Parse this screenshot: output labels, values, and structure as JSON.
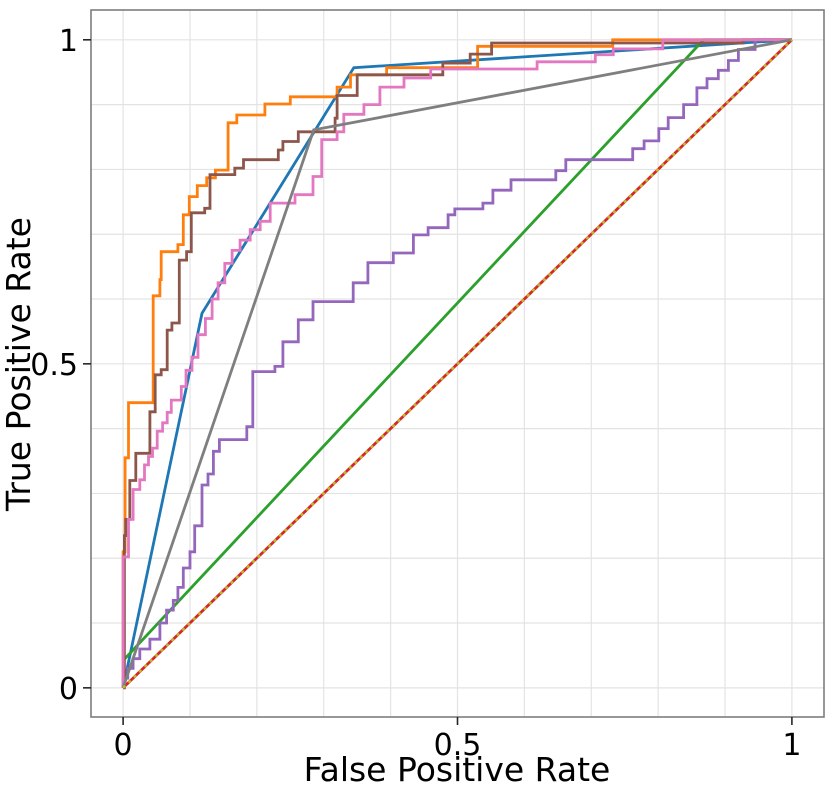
{
  "figure": {
    "background": "#ffffff",
    "grid_color": "#e3e3e3",
    "spine_color": "#7d7d7d",
    "tick_color": "#262626",
    "text_color": "#000000"
  },
  "chart_data": {
    "type": "line",
    "subtype": "roc-curves",
    "title": "",
    "xlabel": "False Positive Rate",
    "ylabel": "True Positive Rate",
    "xlim": [
      -0.048,
      1.048
    ],
    "ylim": [
      -0.045,
      1.046
    ],
    "grid": true,
    "grid_interval": 0.1,
    "legend": "none",
    "xticks": {
      "values": [
        0,
        0.5,
        1
      ],
      "labels": [
        "0",
        "0.5",
        "1"
      ]
    },
    "yticks": {
      "values": [
        0,
        0.5,
        1
      ],
      "labels": [
        "0",
        "0.5",
        "1"
      ]
    },
    "series": [
      {
        "name": "roc-blue",
        "color": "#1f77b4",
        "linestyle": "solid",
        "linewidth": 2.8,
        "points": [
          [
            0,
            0
          ],
          [
            0.118,
            0.578
          ],
          [
            0.345,
            0.957
          ],
          [
            1,
            1
          ]
        ]
      },
      {
        "name": "roc-orange",
        "color": "#ff7f0e",
        "linestyle": "solid",
        "linewidth": 2.8,
        "points": [
          [
            0,
            0
          ],
          [
            0,
            0.21
          ],
          [
            0.003,
            0.21
          ],
          [
            0.003,
            0.355
          ],
          [
            0.008,
            0.355
          ],
          [
            0.008,
            0.44
          ],
          [
            0.045,
            0.44
          ],
          [
            0.045,
            0.605
          ],
          [
            0.055,
            0.605
          ],
          [
            0.055,
            0.63
          ],
          [
            0.057,
            0.63
          ],
          [
            0.057,
            0.673
          ],
          [
            0.082,
            0.673
          ],
          [
            0.082,
            0.684
          ],
          [
            0.09,
            0.684
          ],
          [
            0.09,
            0.73
          ],
          [
            0.099,
            0.73
          ],
          [
            0.099,
            0.758
          ],
          [
            0.111,
            0.758
          ],
          [
            0.111,
            0.775
          ],
          [
            0.125,
            0.775
          ],
          [
            0.125,
            0.787
          ],
          [
            0.138,
            0.787
          ],
          [
            0.138,
            0.799
          ],
          [
            0.157,
            0.799
          ],
          [
            0.157,
            0.872
          ],
          [
            0.17,
            0.872
          ],
          [
            0.17,
            0.884
          ],
          [
            0.212,
            0.884
          ],
          [
            0.212,
            0.901
          ],
          [
            0.25,
            0.901
          ],
          [
            0.25,
            0.912
          ],
          [
            0.32,
            0.912
          ],
          [
            0.32,
            0.927
          ],
          [
            0.34,
            0.927
          ],
          [
            0.34,
            0.946
          ],
          [
            0.394,
            0.946
          ],
          [
            0.394,
            0.957
          ],
          [
            0.53,
            0.957
          ],
          [
            0.53,
            0.99
          ],
          [
            0.732,
            0.99
          ],
          [
            0.732,
            1
          ],
          [
            1,
            1
          ]
        ]
      },
      {
        "name": "roc-green",
        "color": "#2ca02c",
        "linestyle": "solid",
        "linewidth": 2.8,
        "points": [
          [
            0,
            0.042
          ],
          [
            0.868,
            1
          ],
          [
            1,
            1
          ]
        ]
      },
      {
        "name": "roc-red-diagonal",
        "color": "#d62728",
        "linestyle": "solid",
        "linewidth": 2.8,
        "points": [
          [
            0,
            0
          ],
          [
            1,
            1
          ]
        ]
      },
      {
        "name": "roc-purple",
        "color": "#9467bd",
        "linestyle": "solid",
        "linewidth": 2.8,
        "points": [
          [
            0,
            0
          ],
          [
            0,
            0.015
          ],
          [
            0.007,
            0.015
          ],
          [
            0.007,
            0.03
          ],
          [
            0.015,
            0.03
          ],
          [
            0.015,
            0.045
          ],
          [
            0.025,
            0.045
          ],
          [
            0.025,
            0.06
          ],
          [
            0.04,
            0.06
          ],
          [
            0.04,
            0.075
          ],
          [
            0.055,
            0.075
          ],
          [
            0.055,
            0.1
          ],
          [
            0.065,
            0.1
          ],
          [
            0.065,
            0.12
          ],
          [
            0.075,
            0.12
          ],
          [
            0.075,
            0.135
          ],
          [
            0.082,
            0.135
          ],
          [
            0.082,
            0.155
          ],
          [
            0.09,
            0.155
          ],
          [
            0.09,
            0.185
          ],
          [
            0.1,
            0.185
          ],
          [
            0.1,
            0.21
          ],
          [
            0.107,
            0.21
          ],
          [
            0.107,
            0.25
          ],
          [
            0.118,
            0.25
          ],
          [
            0.118,
            0.313
          ],
          [
            0.127,
            0.313
          ],
          [
            0.127,
            0.33
          ],
          [
            0.135,
            0.33
          ],
          [
            0.135,
            0.365
          ],
          [
            0.144,
            0.365
          ],
          [
            0.144,
            0.383
          ],
          [
            0.185,
            0.383
          ],
          [
            0.185,
            0.403
          ],
          [
            0.194,
            0.403
          ],
          [
            0.194,
            0.488
          ],
          [
            0.227,
            0.488
          ],
          [
            0.227,
            0.496
          ],
          [
            0.239,
            0.496
          ],
          [
            0.239,
            0.534
          ],
          [
            0.262,
            0.534
          ],
          [
            0.262,
            0.568
          ],
          [
            0.284,
            0.568
          ],
          [
            0.284,
            0.596
          ],
          [
            0.344,
            0.596
          ],
          [
            0.344,
            0.625
          ],
          [
            0.366,
            0.625
          ],
          [
            0.366,
            0.656
          ],
          [
            0.404,
            0.656
          ],
          [
            0.404,
            0.671
          ],
          [
            0.434,
            0.671
          ],
          [
            0.434,
            0.699
          ],
          [
            0.456,
            0.699
          ],
          [
            0.456,
            0.71
          ],
          [
            0.486,
            0.71
          ],
          [
            0.486,
            0.73
          ],
          [
            0.496,
            0.73
          ],
          [
            0.496,
            0.739
          ],
          [
            0.538,
            0.739
          ],
          [
            0.538,
            0.748
          ],
          [
            0.553,
            0.748
          ],
          [
            0.553,
            0.768
          ],
          [
            0.58,
            0.768
          ],
          [
            0.58,
            0.784
          ],
          [
            0.647,
            0.784
          ],
          [
            0.647,
            0.798
          ],
          [
            0.662,
            0.798
          ],
          [
            0.662,
            0.815
          ],
          [
            0.762,
            0.815
          ],
          [
            0.762,
            0.832
          ],
          [
            0.779,
            0.832
          ],
          [
            0.779,
            0.844
          ],
          [
            0.801,
            0.844
          ],
          [
            0.801,
            0.863
          ],
          [
            0.815,
            0.863
          ],
          [
            0.815,
            0.88
          ],
          [
            0.838,
            0.88
          ],
          [
            0.838,
            0.9
          ],
          [
            0.858,
            0.9
          ],
          [
            0.858,
            0.926
          ],
          [
            0.873,
            0.926
          ],
          [
            0.873,
            0.94
          ],
          [
            0.89,
            0.94
          ],
          [
            0.89,
            0.953
          ],
          [
            0.905,
            0.953
          ],
          [
            0.905,
            0.968
          ],
          [
            0.92,
            0.968
          ],
          [
            0.92,
            0.985
          ],
          [
            0.945,
            0.985
          ],
          [
            0.945,
            1
          ],
          [
            1,
            1
          ]
        ]
      },
      {
        "name": "roc-brown",
        "color": "#8c564b",
        "linestyle": "solid",
        "linewidth": 2.8,
        "points": [
          [
            0,
            0
          ],
          [
            0.002,
            0
          ],
          [
            0.002,
            0.235
          ],
          [
            0.004,
            0.235
          ],
          [
            0.004,
            0.26
          ],
          [
            0.01,
            0.26
          ],
          [
            0.01,
            0.32
          ],
          [
            0.019,
            0.32
          ],
          [
            0.019,
            0.362
          ],
          [
            0.04,
            0.362
          ],
          [
            0.04,
            0.426
          ],
          [
            0.048,
            0.426
          ],
          [
            0.048,
            0.483
          ],
          [
            0.057,
            0.483
          ],
          [
            0.057,
            0.491
          ],
          [
            0.066,
            0.491
          ],
          [
            0.066,
            0.552
          ],
          [
            0.073,
            0.552
          ],
          [
            0.073,
            0.563
          ],
          [
            0.084,
            0.563
          ],
          [
            0.084,
            0.66
          ],
          [
            0.095,
            0.66
          ],
          [
            0.095,
            0.673
          ],
          [
            0.102,
            0.673
          ],
          [
            0.102,
            0.733
          ],
          [
            0.122,
            0.733
          ],
          [
            0.122,
            0.74
          ],
          [
            0.13,
            0.74
          ],
          [
            0.13,
            0.792
          ],
          [
            0.167,
            0.792
          ],
          [
            0.167,
            0.802
          ],
          [
            0.18,
            0.802
          ],
          [
            0.18,
            0.815
          ],
          [
            0.232,
            0.815
          ],
          [
            0.232,
            0.83
          ],
          [
            0.239,
            0.83
          ],
          [
            0.239,
            0.843
          ],
          [
            0.262,
            0.843
          ],
          [
            0.262,
            0.858
          ],
          [
            0.317,
            0.858
          ],
          [
            0.317,
            0.879
          ],
          [
            0.32,
            0.879
          ],
          [
            0.32,
            0.914
          ],
          [
            0.35,
            0.914
          ],
          [
            0.35,
            0.946
          ],
          [
            0.478,
            0.946
          ],
          [
            0.478,
            0.964
          ],
          [
            0.519,
            0.964
          ],
          [
            0.519,
            0.978
          ],
          [
            0.551,
            0.978
          ],
          [
            0.551,
            0.995
          ],
          [
            0.927,
            0.995
          ],
          [
            0.927,
            1
          ],
          [
            1,
            1
          ]
        ]
      },
      {
        "name": "roc-pink",
        "color": "#e377c2",
        "linestyle": "solid",
        "linewidth": 2.8,
        "points": [
          [
            0,
            0
          ],
          [
            0,
            0.202
          ],
          [
            0.008,
            0.202
          ],
          [
            0.008,
            0.26
          ],
          [
            0.015,
            0.26
          ],
          [
            0.015,
            0.306
          ],
          [
            0.025,
            0.306
          ],
          [
            0.025,
            0.321
          ],
          [
            0.032,
            0.321
          ],
          [
            0.032,
            0.344
          ],
          [
            0.038,
            0.344
          ],
          [
            0.038,
            0.357
          ],
          [
            0.044,
            0.357
          ],
          [
            0.044,
            0.37
          ],
          [
            0.051,
            0.37
          ],
          [
            0.051,
            0.396
          ],
          [
            0.059,
            0.396
          ],
          [
            0.059,
            0.409
          ],
          [
            0.066,
            0.409
          ],
          [
            0.066,
            0.425
          ],
          [
            0.072,
            0.425
          ],
          [
            0.072,
            0.444
          ],
          [
            0.087,
            0.444
          ],
          [
            0.087,
            0.465
          ],
          [
            0.094,
            0.465
          ],
          [
            0.094,
            0.49
          ],
          [
            0.103,
            0.49
          ],
          [
            0.103,
            0.51
          ],
          [
            0.112,
            0.51
          ],
          [
            0.112,
            0.545
          ],
          [
            0.123,
            0.545
          ],
          [
            0.123,
            0.57
          ],
          [
            0.133,
            0.57
          ],
          [
            0.133,
            0.6
          ],
          [
            0.142,
            0.6
          ],
          [
            0.142,
            0.625
          ],
          [
            0.152,
            0.625
          ],
          [
            0.152,
            0.655
          ],
          [
            0.163,
            0.655
          ],
          [
            0.163,
            0.675
          ],
          [
            0.175,
            0.675
          ],
          [
            0.175,
            0.691
          ],
          [
            0.19,
            0.691
          ],
          [
            0.19,
            0.707
          ],
          [
            0.205,
            0.707
          ],
          [
            0.205,
            0.72
          ],
          [
            0.22,
            0.72
          ],
          [
            0.22,
            0.748
          ],
          [
            0.257,
            0.748
          ],
          [
            0.257,
            0.761
          ],
          [
            0.284,
            0.761
          ],
          [
            0.284,
            0.789
          ],
          [
            0.297,
            0.789
          ],
          [
            0.297,
            0.846
          ],
          [
            0.32,
            0.846
          ],
          [
            0.32,
            0.858
          ],
          [
            0.33,
            0.858
          ],
          [
            0.33,
            0.885
          ],
          [
            0.36,
            0.885
          ],
          [
            0.36,
            0.9
          ],
          [
            0.384,
            0.9
          ],
          [
            0.384,
            0.927
          ],
          [
            0.42,
            0.927
          ],
          [
            0.42,
            0.941
          ],
          [
            0.46,
            0.941
          ],
          [
            0.46,
            0.955
          ],
          [
            0.619,
            0.955
          ],
          [
            0.619,
            0.966
          ],
          [
            0.706,
            0.966
          ],
          [
            0.706,
            0.977
          ],
          [
            0.733,
            0.977
          ],
          [
            0.733,
            0.986
          ],
          [
            0.807,
            0.986
          ],
          [
            0.807,
            1
          ],
          [
            1,
            1
          ]
        ]
      },
      {
        "name": "roc-gray",
        "color": "#7f7f7f",
        "linestyle": "solid",
        "linewidth": 2.8,
        "points": [
          [
            0,
            0
          ],
          [
            0.285,
            0.861
          ],
          [
            1,
            1
          ]
        ]
      },
      {
        "name": "roc-olive-dotted",
        "color": "#bcbd22",
        "linestyle": "dotted",
        "linewidth": 2.3,
        "points": [
          [
            0,
            0
          ],
          [
            1,
            1
          ]
        ]
      }
    ]
  }
}
